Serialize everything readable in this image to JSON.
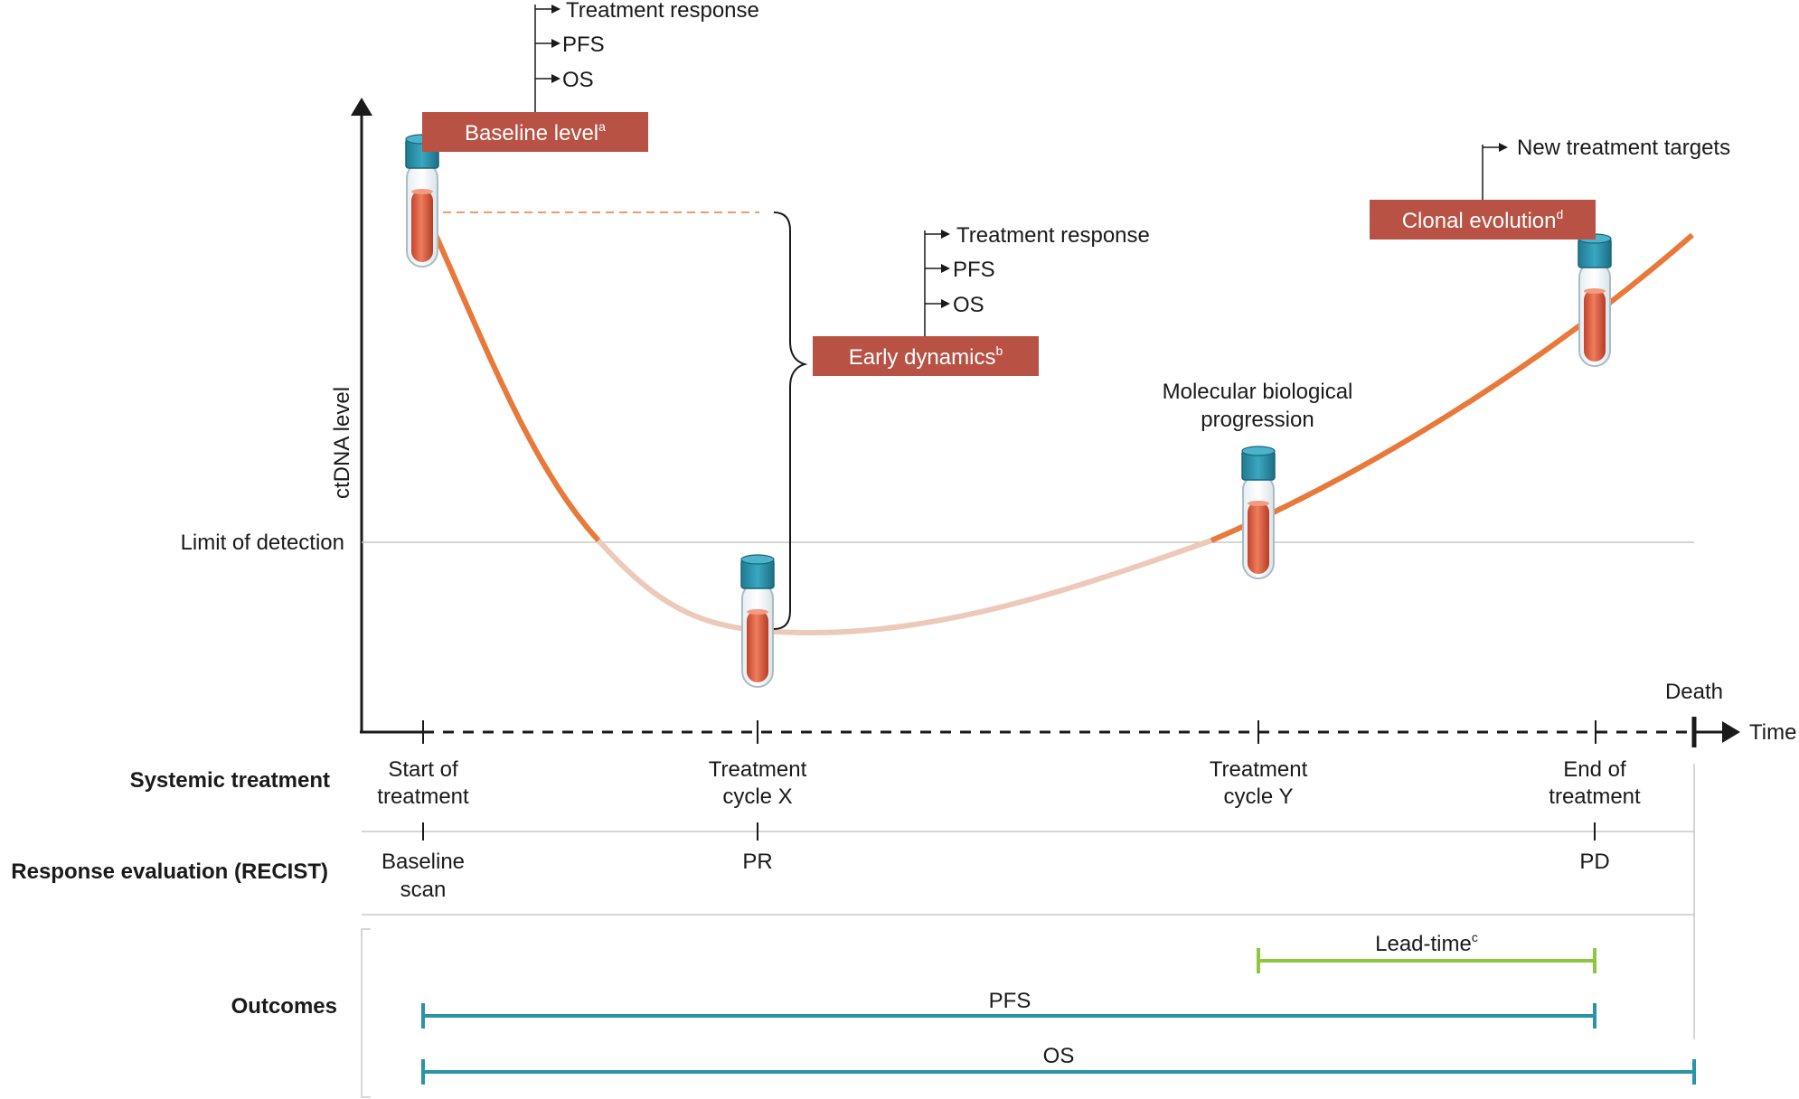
{
  "colors": {
    "box": "#b85244",
    "curve_detected": "#e8793a",
    "curve_undetected": "#ecc9b8",
    "tube_cap": "#2d8fa8",
    "tube_fill": "#d9563a",
    "outcome_bar": "#2a93a8",
    "lead_time_bar": "#8ec63f",
    "grid": "#c8c8c8"
  },
  "axes": {
    "y_label": "ctDNA level",
    "x_label": "Time",
    "limit_of_detection": "Limit of detection",
    "death": "Death"
  },
  "boxes": {
    "baseline": {
      "label": "Baseline level",
      "sup": "a"
    },
    "early": {
      "label": "Early dynamics",
      "sup": "b"
    },
    "clonal": {
      "label": "Clonal evolution",
      "sup": "d"
    }
  },
  "branches": {
    "baseline": [
      "Treatment response",
      "PFS",
      "OS"
    ],
    "early": [
      "Treatment response",
      "PFS",
      "OS"
    ],
    "clonal": [
      "New treatment targets"
    ]
  },
  "annotations": {
    "molecular_progression": [
      "Molecular biological",
      "progression"
    ]
  },
  "rows": {
    "systemic": {
      "header": "Systemic treatment",
      "items": [
        [
          "Start of",
          "treatment"
        ],
        [
          "Treatment",
          "cycle X"
        ],
        [
          "Treatment",
          "cycle Y"
        ],
        [
          "End of",
          "treatment"
        ]
      ]
    },
    "response": {
      "header": "Response evaluation (RECIST)",
      "items": [
        [
          "Baseline",
          "scan"
        ],
        [
          "PR"
        ],
        [
          "PD"
        ]
      ]
    },
    "outcomes": {
      "header": "Outcomes",
      "lead_time": {
        "label": "Lead-time",
        "sup": "c"
      },
      "pfs": "PFS",
      "os": "OS"
    }
  }
}
